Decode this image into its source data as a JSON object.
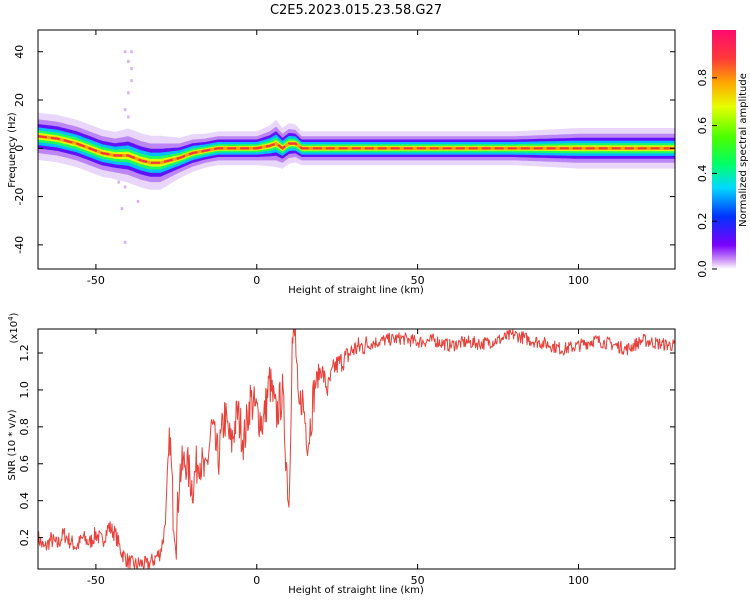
{
  "title": "C2E5.2023.015.23.58.G27",
  "colors": {
    "snr_line": "#e8413a",
    "spectral_ridge": "#f23a3a",
    "axis": "#000000"
  },
  "chart_data": [
    {
      "type": "heatmap",
      "name": "spectrogram",
      "xlabel": "Height of straight line (km)",
      "ylabel": "Frequency (Hz)",
      "xlim": [
        -68,
        130
      ],
      "ylim": [
        -50,
        49
      ],
      "x_ticks": [
        -50,
        0,
        50,
        100
      ],
      "x_tick_labels": [
        "-50",
        "0",
        "50",
        "100"
      ],
      "y_ticks": [
        -40,
        -20,
        0,
        20,
        40
      ],
      "y_tick_labels": [
        "-40",
        "-20",
        "0",
        "20",
        "40"
      ],
      "colorbar": {
        "label": "Normalized spectral amplitude",
        "range": [
          0.0,
          1.0
        ],
        "ticks": [
          0.0,
          0.2,
          0.4,
          0.6,
          0.8
        ],
        "tick_labels": [
          "0.0",
          "0.2",
          "0.4",
          "0.6",
          "0.8"
        ],
        "colormap": [
          "#ffffff",
          "#c98cf5",
          "#7a00ff",
          "#0033ff",
          "#00d9ff",
          "#00ff66",
          "#4aff00",
          "#e6ff00",
          "#ffa500",
          "#ff3a3a",
          "#ff0a6e"
        ]
      },
      "ridge_frequency": {
        "x": [
          -68,
          -62,
          -56,
          -52,
          -48,
          -44,
          -40,
          -36,
          -33,
          -30,
          -27,
          -24,
          -20,
          -16,
          -12,
          -8,
          -4,
          0,
          4,
          6,
          8,
          10,
          12,
          14,
          20,
          30,
          50,
          80,
          100,
          130
        ],
        "y": [
          5,
          4,
          2,
          0,
          -2,
          -3,
          -3,
          -5,
          -6,
          -6,
          -5,
          -4,
          -2,
          -1,
          0,
          0,
          0,
          0,
          1,
          2,
          0,
          2,
          2,
          0,
          0,
          0,
          0,
          0,
          0,
          0
        ],
        "spread_hz": [
          3.5,
          3.5,
          3.5,
          3.5,
          3.5,
          3.5,
          4,
          4,
          4,
          4,
          3.5,
          3,
          2.8,
          2.5,
          2.5,
          2.5,
          2.5,
          2.5,
          3,
          3.5,
          3,
          3,
          2.8,
          2.5,
          2.5,
          2.5,
          2.5,
          2.5,
          3,
          3
        ]
      }
    },
    {
      "type": "line",
      "name": "snr",
      "xlabel": "Height of straight line (km)",
      "ylabel": "SNR (10 * v/v)",
      "y_multiplier_label": "(x10",
      "y_multiplier_exp": "4",
      "xlim": [
        -68,
        130
      ],
      "ylim": [
        0.03,
        1.33
      ],
      "x_ticks": [
        -50,
        0,
        50,
        100
      ],
      "x_tick_labels": [
        "-50",
        "0",
        "50",
        "100"
      ],
      "y_ticks": [
        0.2,
        0.4,
        0.6,
        0.8,
        1.0,
        1.2
      ],
      "y_tick_labels": [
        "0.2",
        "0.4",
        "0.6",
        "0.8",
        "1.0",
        "1.2"
      ],
      "series": [
        {
          "x": [
            -68,
            -66,
            -64,
            -62,
            -60,
            -58,
            -56,
            -54,
            -52,
            -50,
            -48,
            -46,
            -44,
            -42,
            -40,
            -38,
            -36,
            -34,
            -32,
            -30,
            -29,
            -28,
            -27,
            -26,
            -25,
            -24,
            -22,
            -20,
            -18,
            -16,
            -14,
            -12,
            -10,
            -8,
            -6,
            -4,
            -2,
            0,
            2,
            4,
            6,
            8,
            10,
            11,
            12,
            13,
            14,
            16,
            18,
            20,
            22,
            24,
            26,
            28,
            30,
            35,
            40,
            45,
            50,
            55,
            60,
            65,
            70,
            75,
            80,
            85,
            90,
            95,
            100,
            105,
            110,
            115,
            120,
            125,
            130
          ],
          "values": [
            0.2,
            0.14,
            0.19,
            0.16,
            0.22,
            0.18,
            0.15,
            0.2,
            0.17,
            0.22,
            0.18,
            0.26,
            0.22,
            0.12,
            0.07,
            0.05,
            0.06,
            0.05,
            0.08,
            0.12,
            0.2,
            0.38,
            0.76,
            0.35,
            0.2,
            0.55,
            0.62,
            0.47,
            0.65,
            0.52,
            0.8,
            0.62,
            0.86,
            0.7,
            0.88,
            0.72,
            0.95,
            0.88,
            0.82,
            1.05,
            0.86,
            0.98,
            0.37,
            1.25,
            1.3,
            0.85,
            0.97,
            0.72,
            1.02,
            1.12,
            1.0,
            1.12,
            1.15,
            1.18,
            1.22,
            1.25,
            1.27,
            1.28,
            1.26,
            1.27,
            1.24,
            1.26,
            1.25,
            1.27,
            1.3,
            1.27,
            1.25,
            1.22,
            1.24,
            1.27,
            1.25,
            1.22,
            1.27,
            1.25,
            1.24
          ]
        }
      ]
    }
  ]
}
